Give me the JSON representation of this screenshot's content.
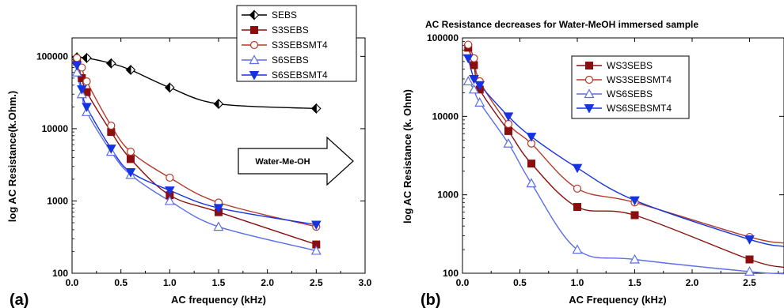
{
  "figure": {
    "panel_a_label": "(a)",
    "panel_b_label": "(b)",
    "arrow_label": "Water-Me-OH",
    "colors": {
      "black": "#000000",
      "darkred": "#8b0e0e",
      "lightred": "#b33a2a",
      "lightblue": "#5c6ee8",
      "blue": "#1633e0"
    }
  },
  "chart_data": [
    {
      "type": "line",
      "title": "",
      "xlabel": "AC frequency (kHz)",
      "ylabel": "log AC Resistance(k.Ohm.)",
      "xlim": [
        0,
        3.0
      ],
      "ylim": [
        100,
        200000
      ],
      "yscale": "log",
      "xticks": [
        "0.0",
        "0.5",
        "1.0",
        "1.5",
        "2.0",
        "2.5",
        "3.0"
      ],
      "yticks": [
        "100",
        "1000",
        "10000",
        "100000"
      ],
      "legend_position": "top-right",
      "series": [
        {
          "name": "SEBS",
          "marker": "diamond-half",
          "color": "#000000",
          "x": [
            0.05,
            0.15,
            0.4,
            0.6,
            1.0,
            1.5,
            2.5
          ],
          "y": [
            97000,
            95000,
            80000,
            65000,
            37000,
            22000,
            19000
          ]
        },
        {
          "name": "S3SEBS",
          "marker": "square-filled",
          "color": "#8b0e0e",
          "x": [
            0.05,
            0.1,
            0.15,
            0.4,
            0.6,
            1.0,
            1.5,
            2.5
          ],
          "y": [
            85000,
            50000,
            32000,
            9000,
            3800,
            1200,
            700,
            250
          ]
        },
        {
          "name": "S3SEBSMT4",
          "marker": "circle-open",
          "color": "#b33a2a",
          "x": [
            0.05,
            0.1,
            0.15,
            0.4,
            0.6,
            1.0,
            1.5,
            2.5
          ],
          "y": [
            95000,
            70000,
            45000,
            11000,
            4800,
            2100,
            950,
            440
          ]
        },
        {
          "name": "S6SEBS",
          "marker": "triangle-up-open",
          "color": "#5c6ee8",
          "x": [
            0.05,
            0.1,
            0.15,
            0.4,
            0.6,
            1.0,
            1.5,
            2.5
          ],
          "y": [
            60000,
            30000,
            17000,
            4800,
            2300,
            1000,
            440,
            205
          ]
        },
        {
          "name": "S6SEBSMT4",
          "marker": "triangle-down-filled",
          "color": "#1633e0",
          "x": [
            0.05,
            0.1,
            0.15,
            0.4,
            0.6,
            1.0,
            1.5,
            2.5
          ],
          "y": [
            75000,
            35000,
            20000,
            5300,
            2500,
            1400,
            800,
            470
          ]
        }
      ]
    },
    {
      "type": "line",
      "title": "AC Resistance decreases for Water-MeOH immersed sample",
      "xlabel": "AC Frequency (kHz)",
      "ylabel": "log AC Resistance (k. Ohm)",
      "xlim": [
        0,
        2.8
      ],
      "ylim": [
        100,
        100000
      ],
      "yscale": "log",
      "xticks": [
        "0.0",
        "0.5",
        "1.0",
        "1.5",
        "2.0",
        "2.5"
      ],
      "yticks": [
        "100",
        "1000",
        "10000",
        "100000"
      ],
      "legend_position": "top-right",
      "series": [
        {
          "name": "WS3SEBS",
          "marker": "square-filled",
          "color": "#8b0e0e",
          "x": [
            0.05,
            0.1,
            0.15,
            0.4,
            0.6,
            1.0,
            1.5,
            2.5
          ],
          "y": [
            75000,
            45000,
            22000,
            6500,
            2500,
            700,
            550,
            150
          ]
        },
        {
          "name": "WS3SEBSMT4",
          "marker": "circle-open",
          "color": "#b33a2a",
          "x": [
            0.05,
            0.1,
            0.15,
            0.4,
            0.6,
            1.0,
            1.5,
            2.5
          ],
          "y": [
            82000,
            55000,
            28000,
            8000,
            4500,
            1200,
            800,
            290
          ]
        },
        {
          "name": "WS6SEBS",
          "marker": "triangle-up-open",
          "color": "#5c6ee8",
          "x": [
            0.05,
            0.1,
            0.15,
            0.4,
            0.6,
            1.0,
            1.5,
            2.5
          ],
          "y": [
            28000,
            22000,
            15000,
            4500,
            1400,
            200,
            150,
            105
          ]
        },
        {
          "name": "WS6SEBSMT4",
          "marker": "triangle-down-filled",
          "color": "#1633e0",
          "x": [
            0.05,
            0.1,
            0.15,
            0.4,
            0.6,
            1.0,
            1.5,
            2.5
          ],
          "y": [
            55000,
            30000,
            25000,
            10000,
            5500,
            2200,
            850,
            270
          ]
        }
      ]
    }
  ]
}
